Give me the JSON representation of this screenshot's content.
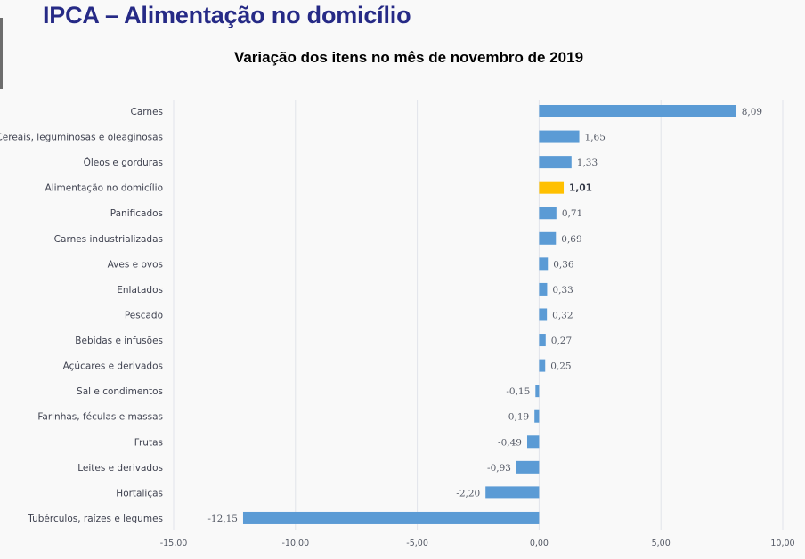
{
  "header": {
    "title": "IPCA – Alimentação no domicílio"
  },
  "chart_data": {
    "type": "bar",
    "orientation": "horizontal",
    "title": "Variação dos itens no mês de novembro de 2019",
    "xlabel": "",
    "ylabel": "",
    "xlim": [
      -15,
      10
    ],
    "grid": true,
    "x_ticks": [
      -15,
      -10,
      -5,
      0,
      5,
      10
    ],
    "x_tick_labels": [
      "-15,00",
      "-10,00",
      "-5,00",
      "0,00",
      "5,00",
      "10,00"
    ],
    "categories": [
      "Carnes",
      "Cereais, leguminosas e oleaginosas",
      "Óleos e gorduras",
      "Alimentação no domicílio",
      "Panificados",
      "Carnes industrializadas",
      "Aves e ovos",
      "Enlatados",
      "Pescado",
      "Bebidas e infusões",
      "Açúcares e derivados",
      "Sal e condimentos",
      "Farinhas, féculas e massas",
      "Frutas",
      "Leites e derivados",
      "Hortaliças",
      "Tubérculos, raízes e legumes"
    ],
    "values": [
      8.09,
      1.65,
      1.33,
      1.01,
      0.71,
      0.69,
      0.36,
      0.33,
      0.32,
      0.27,
      0.25,
      -0.15,
      -0.19,
      -0.49,
      -0.93,
      -2.2,
      -12.15
    ],
    "value_labels": [
      "8,09",
      "1,65",
      "1,33",
      "1,01",
      "0,71",
      "0,69",
      "0,36",
      "0,33",
      "0,32",
      "0,27",
      "0,25",
      "-0,15",
      "-0,19",
      "-0,49",
      "-0,93",
      "-2,20",
      "-12,15"
    ],
    "highlight_index": 3,
    "colors": {
      "bar": "#5b9bd5",
      "highlight": "#ffc000",
      "grid": "#e1e4ea"
    }
  }
}
